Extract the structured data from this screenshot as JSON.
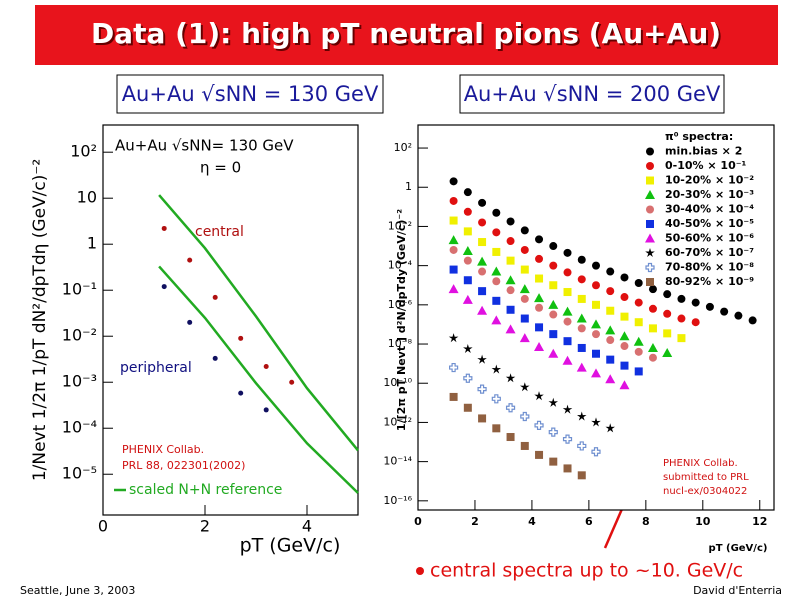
{
  "slide": {
    "title": "Data (1): high pT neutral pions (Au+Au)",
    "subtitles": [
      "Au+Au √sNN = 130 GeV",
      "Au+Au √sNN = 200 GeV"
    ],
    "note": "central spectra up to ~10. GeV/c",
    "footer_left": "Seattle, June  3, 2003",
    "footer_right": "David d'Enterria"
  },
  "chart_data": [
    {
      "type": "scatter",
      "log_y": true,
      "legend": "lower left",
      "xlabel": "pT (GeV/c)",
      "ylabel": "1/Nevt 1/2π 1/pT dN²/dpTdη (GeV/c)⁻²",
      "xlim": [
        0,
        5
      ],
      "xticks": [
        0,
        2,
        4
      ],
      "ylim": [
        1.3e-06,
        390
      ],
      "yticks": [
        {
          "value": 100,
          "label": "10²"
        },
        10,
        1,
        {
          "value": 0.1,
          "label": "10⁻¹"
        },
        {
          "value": 0.01,
          "label": "10⁻²"
        },
        {
          "value": 0.001,
          "label": "10⁻³"
        },
        {
          "value": 0.0001,
          "label": "10⁻⁴"
        },
        {
          "value": 1e-05,
          "label": "10⁻⁵"
        }
      ],
      "annotations": [
        "Au+Au √sNN= 130 GeV",
        "η = 0",
        "PHENIX Collab.",
        "PRL 88, 022301(2002)"
      ],
      "series": [
        {
          "name": "central",
          "color": "#b01010",
          "label_color": "#b01010",
          "marker": "circle",
          "x": [
            1.2,
            1.7,
            2.2,
            2.7,
            3.2,
            3.7
          ],
          "values": [
            2.2,
            0.45,
            0.07,
            0.009,
            0.0022,
            0.001
          ]
        },
        {
          "name": "peripheral",
          "color": "#101060",
          "label_color": "#101080",
          "marker": "circle",
          "x": [
            1.2,
            1.7,
            2.2,
            2.7,
            3.2
          ],
          "values": [
            0.12,
            0.02,
            0.0033,
            0.00058,
            0.00025
          ]
        },
        {
          "name": "scaled N+N reference",
          "color": "#22aa22",
          "mode": "line",
          "x": [
            1.1,
            2,
            3,
            4,
            5
          ],
          "values": [
            11.7,
            0.82,
            0.027,
            0.00074,
            3.3e-05
          ]
        },
        {
          "color": "#22aa22",
          "mode": "line",
          "x": [
            1.1,
            2,
            3,
            4,
            5
          ],
          "values": [
            0.33,
            0.025,
            0.00095,
            4.7e-05,
            3.9e-06
          ]
        }
      ]
    },
    {
      "type": "scatter",
      "log_y": true,
      "legend": "upper right",
      "legend_title": "π⁰ spectra:",
      "xlabel": "pT (GeV/c)",
      "ylabel": "1/[2π pT Nevt ] d²N/dpTdy (GeV/c)⁻²",
      "xlim": [
        0,
        12.5
      ],
      "xticks": [
        0,
        2,
        4,
        6,
        8,
        10,
        12
      ],
      "ylim": [
        3.4e-17,
        1500
      ],
      "yticks": [
        {
          "value": 100,
          "label": "10²"
        },
        1,
        {
          "value": 0.01,
          "label": "10⁻²"
        },
        {
          "value": 0.0001,
          "label": "10⁻⁴"
        },
        {
          "value": 1e-06,
          "label": "10⁻⁶"
        },
        {
          "value": 1e-08,
          "label": "10⁻⁸"
        },
        {
          "value": 1e-10,
          "label": "10⁻¹⁰"
        },
        {
          "value": 1e-12,
          "label": "10⁻¹²"
        },
        {
          "value": 1e-14,
          "label": "10⁻¹⁴"
        },
        {
          "value": 1e-16,
          "label": "10⁻¹⁶"
        }
      ],
      "annotations": [
        "PHENIX Collab.",
        "submitted to PRL",
        "nucl-ex/0304022"
      ],
      "series": [
        {
          "name": "min.bias × 2",
          "color": "#000000",
          "marker": "circle",
          "x": [
            1.25,
            1.75,
            2.25,
            2.75,
            3.25,
            3.75,
            4.25,
            4.75,
            5.25,
            5.75,
            6.25,
            6.75,
            7.25,
            7.75,
            8.25,
            8.75,
            9.25,
            9.75,
            10.25,
            10.75,
            11.25,
            11.75
          ],
          "values": [
            2.0,
            0.56,
            0.16,
            0.05,
            0.018,
            0.0063,
            0.0022,
            0.001,
            0.00045,
            0.0002,
            0.0001,
            5e-05,
            2.5e-05,
            1.3e-05,
            6.3e-06,
            3.5e-06,
            2e-06,
            1.3e-06,
            7.9e-07,
            4.5e-07,
            2.8e-07,
            1.6e-07
          ]
        },
        {
          "name": "0-10% × 10⁻¹",
          "color": "#e01010",
          "marker": "circle",
          "x": [
            1.25,
            1.75,
            2.25,
            2.75,
            3.25,
            3.75,
            4.25,
            4.75,
            5.25,
            5.75,
            6.25,
            6.75,
            7.25,
            7.75,
            8.25,
            8.75,
            9.25,
            9.75
          ],
          "values": [
            0.2,
            0.056,
            0.016,
            0.005,
            0.0018,
            0.00063,
            0.00022,
            0.0001,
            4.5e-05,
            2e-05,
            1e-05,
            5e-06,
            2.5e-06,
            1.3e-06,
            6.3e-07,
            3.5e-07,
            2e-07,
            1.3e-07
          ]
        },
        {
          "name": "10-20% × 10⁻²",
          "color": "#f0f000",
          "marker": "square",
          "x": [
            1.25,
            1.75,
            2.25,
            2.75,
            3.25,
            3.75,
            4.25,
            4.75,
            5.25,
            5.75,
            6.25,
            6.75,
            7.25,
            7.75,
            8.25,
            8.75,
            9.25
          ],
          "values": [
            0.02,
            0.0056,
            0.0016,
            0.0005,
            0.00018,
            6.3e-05,
            2.2e-05,
            1e-05,
            4.5e-06,
            2e-06,
            1e-06,
            5e-07,
            2.5e-07,
            1.3e-07,
            6.3e-08,
            3.5e-08,
            2e-08
          ]
        },
        {
          "name": "20-30% × 10⁻³",
          "color": "#10c010",
          "marker": "triangle",
          "x": [
            1.25,
            1.75,
            2.25,
            2.75,
            3.25,
            3.75,
            4.25,
            4.75,
            5.25,
            5.75,
            6.25,
            6.75,
            7.25,
            7.75,
            8.25,
            8.75
          ],
          "values": [
            0.002,
            0.00056,
            0.00016,
            5e-05,
            1.8e-05,
            6.3e-06,
            2.2e-06,
            1e-06,
            4.5e-07,
            2e-07,
            1e-07,
            5e-08,
            2.5e-08,
            1.3e-08,
            6.3e-09,
            3.5e-09
          ]
        },
        {
          "name": "30-40% × 10⁻⁴",
          "color": "#d87070",
          "marker": "circle",
          "x": [
            1.25,
            1.75,
            2.25,
            2.75,
            3.25,
            3.75,
            4.25,
            4.75,
            5.25,
            5.75,
            6.25,
            6.75,
            7.25,
            7.75,
            8.25
          ],
          "values": [
            0.00063,
            0.00018,
            5e-05,
            1.6e-05,
            5.6e-06,
            2e-06,
            7.1e-07,
            3.2e-07,
            1.4e-07,
            6.3e-08,
            3.2e-08,
            1.6e-08,
            7.9e-09,
            4e-09,
            2e-09
          ]
        },
        {
          "name": "40-50% × 10⁻⁵",
          "color": "#1030e0",
          "marker": "square",
          "x": [
            1.25,
            1.75,
            2.25,
            2.75,
            3.25,
            3.75,
            4.25,
            4.75,
            5.25,
            5.75,
            6.25,
            6.75,
            7.25,
            7.75
          ],
          "values": [
            6.3e-05,
            1.8e-05,
            5e-06,
            1.6e-06,
            5.6e-07,
            2e-07,
            7.1e-08,
            3.2e-08,
            1.4e-08,
            6.3e-09,
            3.2e-09,
            1.6e-09,
            7.9e-10,
            4e-10
          ]
        },
        {
          "name": "50-60% × 10⁻⁶",
          "color": "#e010e0",
          "marker": "triangle",
          "x": [
            1.25,
            1.75,
            2.25,
            2.75,
            3.25,
            3.75,
            4.25,
            4.75,
            5.25,
            5.75,
            6.25,
            6.75,
            7.25
          ],
          "values": [
            6.3e-06,
            1.8e-06,
            5e-07,
            1.6e-07,
            5.6e-08,
            2e-08,
            7.1e-09,
            3.2e-09,
            1.4e-09,
            6.3e-10,
            3.2e-10,
            1.6e-10,
            7.9e-11
          ]
        },
        {
          "name": "60-70% × 10⁻⁷",
          "color": "#000000",
          "marker": "star",
          "x": [
            1.25,
            1.75,
            2.25,
            2.75,
            3.25,
            3.75,
            4.25,
            4.75,
            5.25,
            5.75,
            6.25,
            6.75
          ],
          "values": [
            2e-08,
            5.6e-09,
            1.6e-09,
            5e-10,
            1.8e-10,
            6.3e-11,
            2.2e-11,
            1e-11,
            4.5e-12,
            2e-12,
            1e-12,
            5e-13
          ]
        },
        {
          "name": "70-80% × 10⁻⁸",
          "color": "#7090d0",
          "marker": "cross",
          "x": [
            1.25,
            1.75,
            2.25,
            2.75,
            3.25,
            3.75,
            4.25,
            4.75,
            5.25,
            5.75,
            6.25
          ],
          "values": [
            6.3e-10,
            1.8e-10,
            5e-11,
            1.6e-11,
            5.6e-12,
            2e-12,
            7.1e-13,
            3.2e-13,
            1.4e-13,
            6.3e-14,
            3.2e-14
          ]
        },
        {
          "name": "80-92% × 10⁻⁹",
          "color": "#906040",
          "marker": "square",
          "x": [
            1.25,
            1.75,
            2.25,
            2.75,
            3.25,
            3.75,
            4.25,
            4.75,
            5.25,
            5.75
          ],
          "values": [
            2e-11,
            5.6e-12,
            1.6e-12,
            5e-13,
            1.8e-13,
            6.3e-14,
            2.2e-14,
            1e-14,
            4.5e-15,
            2e-15
          ]
        }
      ]
    }
  ]
}
